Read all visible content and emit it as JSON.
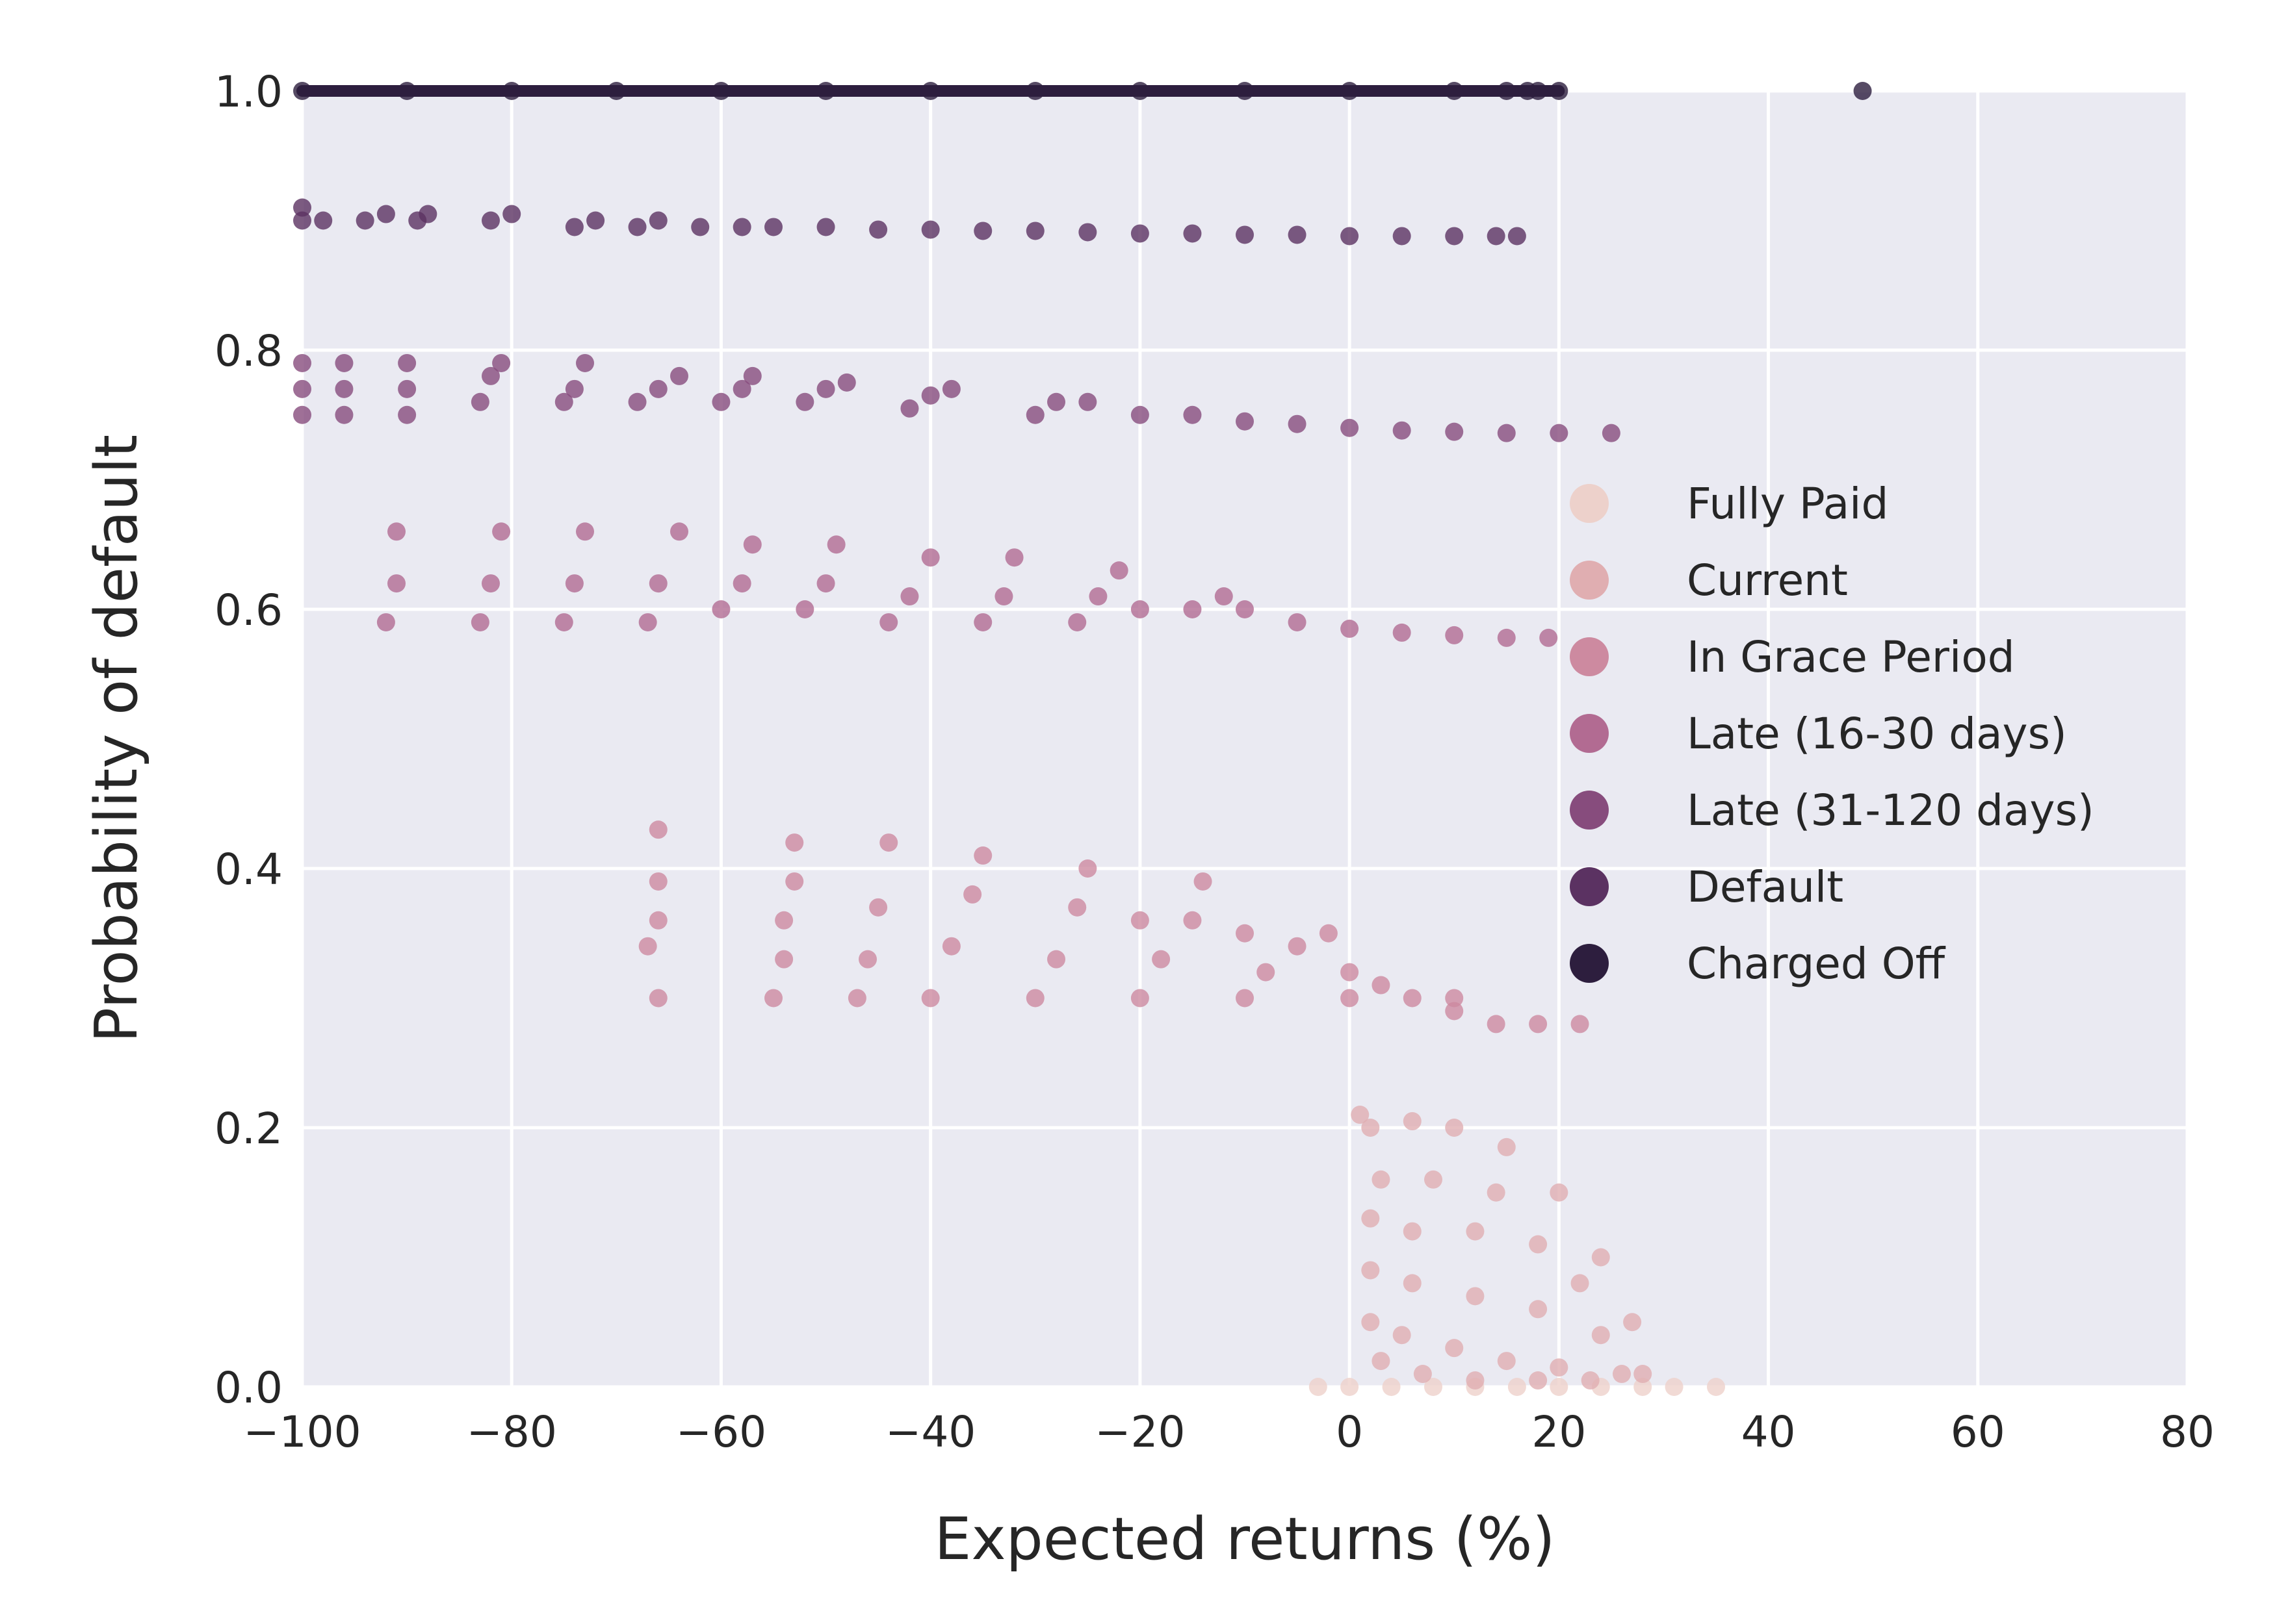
{
  "chart_data": {
    "type": "scatter",
    "title": "",
    "xlabel": "Expected returns (%)",
    "ylabel": "Probability of default",
    "xlim": [
      -100,
      80
    ],
    "ylim": [
      0,
      1.0
    ],
    "xticks": [
      -100,
      -80,
      -60,
      -40,
      -20,
      0,
      20,
      40,
      60,
      80
    ],
    "xtick_labels": [
      "−100",
      "−80",
      "−60",
      "−40",
      "−20",
      "0",
      "20",
      "40",
      "60",
      "80"
    ],
    "yticks": [
      0.0,
      0.2,
      0.4,
      0.6,
      0.8,
      1.0
    ],
    "ytick_labels": [
      "0.0",
      "0.2",
      "0.4",
      "0.6",
      "0.8",
      "1.0"
    ],
    "grid": true,
    "background": "#eaeaf2",
    "legend_position": "right",
    "series": [
      {
        "name": "Fully Paid",
        "color": "#edd1cb",
        "points": [
          [
            -3,
            0.0
          ],
          [
            0,
            0.0
          ],
          [
            4,
            0.0
          ],
          [
            8,
            0.0
          ],
          [
            12,
            0.0
          ],
          [
            16,
            0.0
          ],
          [
            20,
            0.0
          ],
          [
            24,
            0.0
          ],
          [
            28,
            0.0
          ],
          [
            31,
            0.0
          ],
          [
            35,
            0.0
          ]
        ]
      },
      {
        "name": "Current",
        "color": "#e0aeb1",
        "points": [
          [
            1,
            0.21
          ],
          [
            2,
            0.2
          ],
          [
            6,
            0.205
          ],
          [
            10,
            0.2
          ],
          [
            15,
            0.185
          ],
          [
            20,
            0.15
          ],
          [
            24,
            0.1
          ],
          [
            27,
            0.05
          ],
          [
            28,
            0.01
          ],
          [
            3,
            0.16
          ],
          [
            8,
            0.16
          ],
          [
            14,
            0.15
          ],
          [
            2,
            0.13
          ],
          [
            6,
            0.12
          ],
          [
            12,
            0.12
          ],
          [
            18,
            0.11
          ],
          [
            22,
            0.08
          ],
          [
            2,
            0.09
          ],
          [
            6,
            0.08
          ],
          [
            12,
            0.07
          ],
          [
            18,
            0.06
          ],
          [
            24,
            0.04
          ],
          [
            2,
            0.05
          ],
          [
            5,
            0.04
          ],
          [
            10,
            0.03
          ],
          [
            15,
            0.02
          ],
          [
            20,
            0.015
          ],
          [
            26,
            0.01
          ],
          [
            3,
            0.02
          ],
          [
            7,
            0.01
          ],
          [
            12,
            0.005
          ],
          [
            18,
            0.005
          ],
          [
            23,
            0.005
          ]
        ]
      },
      {
        "name": "In Grace Period",
        "color": "#cd8aa0",
        "points": [
          [
            -67,
            0.34
          ],
          [
            -66,
            0.3
          ],
          [
            -66,
            0.36
          ],
          [
            -66,
            0.39
          ],
          [
            -66,
            0.43
          ],
          [
            -55,
            0.3
          ],
          [
            -54,
            0.33
          ],
          [
            -54,
            0.36
          ],
          [
            -53,
            0.39
          ],
          [
            -53,
            0.42
          ],
          [
            -47,
            0.3
          ],
          [
            -46,
            0.33
          ],
          [
            -45,
            0.37
          ],
          [
            -44,
            0.42
          ],
          [
            -40,
            0.3
          ],
          [
            -38,
            0.34
          ],
          [
            -36,
            0.38
          ],
          [
            -35,
            0.41
          ],
          [
            -30,
            0.3
          ],
          [
            -28,
            0.33
          ],
          [
            -26,
            0.37
          ],
          [
            -25,
            0.4
          ],
          [
            -20,
            0.3
          ],
          [
            -18,
            0.33
          ],
          [
            -15,
            0.36
          ],
          [
            -14,
            0.39
          ],
          [
            -10,
            0.3
          ],
          [
            -8,
            0.32
          ],
          [
            -5,
            0.34
          ],
          [
            -2,
            0.35
          ],
          [
            0,
            0.3
          ],
          [
            3,
            0.31
          ],
          [
            6,
            0.3
          ],
          [
            10,
            0.29
          ],
          [
            14,
            0.28
          ],
          [
            18,
            0.28
          ],
          [
            22,
            0.28
          ],
          [
            -20,
            0.36
          ],
          [
            -10,
            0.35
          ],
          [
            0,
            0.32
          ],
          [
            10,
            0.3
          ]
        ]
      },
      {
        "name": "Late (16-30 days)",
        "color": "#b26b92",
        "points": [
          [
            -92,
            0.59
          ],
          [
            -91,
            0.62
          ],
          [
            -91,
            0.66
          ],
          [
            -83,
            0.59
          ],
          [
            -82,
            0.62
          ],
          [
            -81,
            0.66
          ],
          [
            -75,
            0.59
          ],
          [
            -74,
            0.62
          ],
          [
            -73,
            0.66
          ],
          [
            -67,
            0.59
          ],
          [
            -66,
            0.62
          ],
          [
            -64,
            0.66
          ],
          [
            -60,
            0.6
          ],
          [
            -58,
            0.62
          ],
          [
            -57,
            0.65
          ],
          [
            -52,
            0.6
          ],
          [
            -50,
            0.62
          ],
          [
            -49,
            0.65
          ],
          [
            -44,
            0.59
          ],
          [
            -42,
            0.61
          ],
          [
            -40,
            0.64
          ],
          [
            -35,
            0.59
          ],
          [
            -33,
            0.61
          ],
          [
            -32,
            0.64
          ],
          [
            -26,
            0.59
          ],
          [
            -24,
            0.61
          ],
          [
            -22,
            0.63
          ],
          [
            -15,
            0.6
          ],
          [
            -10,
            0.6
          ],
          [
            -5,
            0.59
          ],
          [
            0,
            0.585
          ],
          [
            5,
            0.582
          ],
          [
            10,
            0.58
          ],
          [
            15,
            0.578
          ],
          [
            19,
            0.578
          ],
          [
            -20,
            0.6
          ],
          [
            -12,
            0.61
          ]
        ]
      },
      {
        "name": "Late (31-120 days)",
        "color": "#874c7d",
        "points": [
          [
            -100,
            0.75
          ],
          [
            -100,
            0.77
          ],
          [
            -100,
            0.79
          ],
          [
            -96,
            0.75
          ],
          [
            -96,
            0.77
          ],
          [
            -96,
            0.79
          ],
          [
            -90,
            0.75
          ],
          [
            -90,
            0.77
          ],
          [
            -90,
            0.79
          ],
          [
            -83,
            0.76
          ],
          [
            -82,
            0.78
          ],
          [
            -81,
            0.79
          ],
          [
            -75,
            0.76
          ],
          [
            -74,
            0.77
          ],
          [
            -73,
            0.79
          ],
          [
            -68,
            0.76
          ],
          [
            -66,
            0.77
          ],
          [
            -64,
            0.78
          ],
          [
            -60,
            0.76
          ],
          [
            -58,
            0.77
          ],
          [
            -57,
            0.78
          ],
          [
            -52,
            0.76
          ],
          [
            -50,
            0.77
          ],
          [
            -48,
            0.775
          ],
          [
            -42,
            0.755
          ],
          [
            -40,
            0.765
          ],
          [
            -38,
            0.77
          ],
          [
            -30,
            0.75
          ],
          [
            -28,
            0.76
          ],
          [
            -25,
            0.76
          ],
          [
            -20,
            0.75
          ],
          [
            -15,
            0.75
          ],
          [
            -10,
            0.745
          ],
          [
            -5,
            0.743
          ],
          [
            0,
            0.74
          ],
          [
            5,
            0.738
          ],
          [
            10,
            0.737
          ],
          [
            15,
            0.736
          ],
          [
            20,
            0.736
          ],
          [
            25,
            0.736
          ]
        ]
      },
      {
        "name": "Default",
        "color": "#5b3262",
        "points": [
          [
            -100,
            0.9
          ],
          [
            -100,
            0.91
          ],
          [
            -98,
            0.9
          ],
          [
            -94,
            0.9
          ],
          [
            -92,
            0.905
          ],
          [
            -89,
            0.9
          ],
          [
            -88,
            0.905
          ],
          [
            -82,
            0.9
          ],
          [
            -80,
            0.905
          ],
          [
            -74,
            0.895
          ],
          [
            -72,
            0.9
          ],
          [
            -68,
            0.895
          ],
          [
            -66,
            0.9
          ],
          [
            -62,
            0.895
          ],
          [
            -58,
            0.895
          ],
          [
            -55,
            0.895
          ],
          [
            -50,
            0.895
          ],
          [
            -45,
            0.893
          ],
          [
            -40,
            0.893
          ],
          [
            -35,
            0.892
          ],
          [
            -30,
            0.892
          ],
          [
            -25,
            0.891
          ],
          [
            -20,
            0.89
          ],
          [
            -15,
            0.89
          ],
          [
            -10,
            0.889
          ],
          [
            -5,
            0.889
          ],
          [
            0,
            0.888
          ],
          [
            5,
            0.888
          ],
          [
            10,
            0.888
          ],
          [
            14,
            0.888
          ],
          [
            16,
            0.888
          ]
        ]
      },
      {
        "name": "Charged Off",
        "color": "#2d1e3e",
        "points": [
          [
            -100,
            1.0
          ],
          [
            -90,
            1.0
          ],
          [
            -80,
            1.0
          ],
          [
            -70,
            1.0
          ],
          [
            -60,
            1.0
          ],
          [
            -50,
            1.0
          ],
          [
            -40,
            1.0
          ],
          [
            -30,
            1.0
          ],
          [
            -20,
            1.0
          ],
          [
            -10,
            1.0
          ],
          [
            0,
            1.0
          ],
          [
            10,
            1.0
          ],
          [
            15,
            1.0
          ],
          [
            17,
            1.0
          ],
          [
            18,
            1.0
          ],
          [
            20,
            1.0
          ],
          [
            49,
            1.0
          ]
        ]
      }
    ]
  }
}
